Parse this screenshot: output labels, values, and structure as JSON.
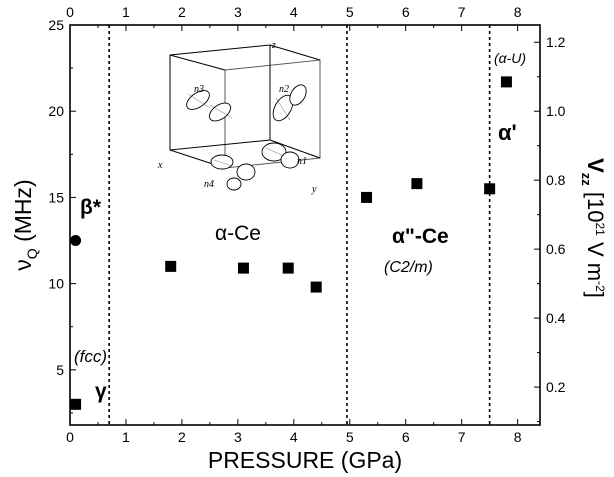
{
  "chart_data": {
    "type": "scatter",
    "xlabel": "PRESSURE (GPa)",
    "xlim": [
      0,
      8.4
    ],
    "ylim": [
      1.8,
      25
    ],
    "y2lim": [
      0.09,
      1.25
    ],
    "x_ticks": [
      "0",
      "1",
      "2",
      "3",
      "4",
      "5",
      "6",
      "7",
      "8"
    ],
    "y_ticks": [
      "5",
      "10",
      "15",
      "20",
      "25"
    ],
    "y2_ticks": [
      "0.2",
      "0.4",
      "0.6",
      "0.8",
      "1.0",
      "1.2"
    ],
    "phase_boundaries": [
      0.7,
      4.95,
      7.5
    ],
    "series": [
      {
        "marker": "square",
        "points": [
          {
            "x": 0.1,
            "y": 3.0
          },
          {
            "x": 1.8,
            "y": 11.0
          },
          {
            "x": 3.1,
            "y": 10.9
          },
          {
            "x": 3.9,
            "y": 10.9
          },
          {
            "x": 4.4,
            "y": 9.8
          },
          {
            "x": 5.3,
            "y": 15.0
          },
          {
            "x": 6.2,
            "y": 15.8
          },
          {
            "x": 7.5,
            "y": 15.5
          },
          {
            "x": 7.8,
            "y": 21.7
          }
        ]
      },
      {
        "marker": "circle",
        "points": [
          {
            "x": 0.1,
            "y": 12.5
          }
        ]
      }
    ],
    "phase_labels": {
      "beta": "β*",
      "gamma": "γ",
      "fcc": "(fcc)",
      "alpha": "α-Ce",
      "alpha2": "α\"-Ce",
      "c2m": "(C2/m)",
      "alpha_u": "(α-U)",
      "alpha_prime": "α'"
    },
    "inset": {
      "axes": [
        "x",
        "y",
        "z"
      ],
      "lobes": [
        "n1",
        "n2",
        "n3",
        "n4"
      ]
    }
  }
}
